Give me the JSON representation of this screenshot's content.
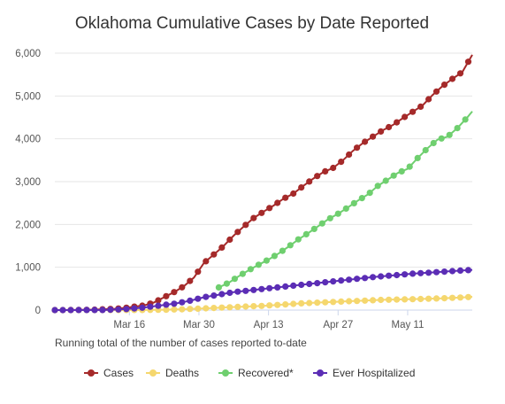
{
  "chart_data": {
    "type": "line",
    "title": "Oklahoma Cumulative Cases by Date Reported",
    "note": "Running total of the number of cases reported to-date",
    "x_ticks": [
      {
        "label": "Mar 16",
        "day": 15
      },
      {
        "label": "Mar 30",
        "day": 29
      },
      {
        "label": "Apr 13",
        "day": 43
      },
      {
        "label": "Apr 27",
        "day": 57
      },
      {
        "label": "May 11",
        "day": 71
      }
    ],
    "y_ticks": [
      "0",
      "1,000",
      "2,000",
      "3,000",
      "4,000",
      "5,000",
      "6,000"
    ],
    "ylim": [
      0,
      6000
    ],
    "xlim": [
      0,
      84
    ],
    "grid": true,
    "legend_position": "bottom",
    "series": [
      {
        "name": "Cases",
        "color": "#a52a2a",
        "x": [
          0,
          4,
          8,
          12,
          14,
          16,
          18,
          20,
          22,
          24,
          26,
          28,
          30,
          32,
          34,
          36,
          38,
          40,
          42,
          44,
          46,
          48,
          50,
          52,
          54,
          56,
          58,
          60,
          62,
          64,
          66,
          68,
          70,
          72,
          74,
          76,
          78,
          80,
          82,
          84
        ],
        "y": [
          0,
          2,
          10,
          30,
          50,
          80,
          110,
          180,
          300,
          420,
          560,
          760,
          1100,
          1300,
          1500,
          1740,
          1950,
          2150,
          2300,
          2440,
          2600,
          2720,
          2900,
          3070,
          3220,
          3320,
          3500,
          3720,
          3900,
          4050,
          4200,
          4320,
          4480,
          4630,
          4780,
          5020,
          5230,
          5400,
          5560,
          5960
        ]
      },
      {
        "name": "Deaths",
        "color": "#f5d76e",
        "x": [
          0,
          10,
          14,
          18,
          22,
          26,
          30,
          34,
          38,
          42,
          46,
          50,
          54,
          58,
          62,
          66,
          70,
          74,
          78,
          82,
          84
        ],
        "y": [
          0,
          0,
          1,
          3,
          8,
          20,
          40,
          60,
          80,
          100,
          130,
          160,
          180,
          200,
          220,
          240,
          250,
          260,
          275,
          295,
          310
        ]
      },
      {
        "name": "Recovered*",
        "color": "#6fcf6f",
        "x": [
          33,
          35,
          37,
          39,
          41,
          43,
          45,
          47,
          49,
          51,
          53,
          55,
          57,
          59,
          61,
          63,
          65,
          67,
          69,
          71,
          73,
          75,
          77,
          79,
          81,
          83,
          84
        ],
        "y": [
          530,
          640,
          790,
          930,
          1060,
          1180,
          1320,
          1480,
          1650,
          1800,
          1960,
          2120,
          2250,
          2400,
          2560,
          2700,
          2900,
          3050,
          3200,
          3300,
          3550,
          3780,
          3980,
          4050,
          4250,
          4500,
          4640
        ]
      },
      {
        "name": "Ever Hospitalized",
        "color": "#5b2db5",
        "x": [
          0,
          10,
          14,
          18,
          20,
          22,
          24,
          26,
          28,
          30,
          32,
          34,
          36,
          40,
          44,
          48,
          52,
          56,
          60,
          64,
          68,
          72,
          76,
          80,
          84
        ],
        "y": [
          0,
          3,
          20,
          60,
          90,
          120,
          150,
          190,
          240,
          300,
          340,
          380,
          420,
          470,
          520,
          570,
          620,
          670,
          720,
          770,
          810,
          850,
          880,
          910,
          940
        ]
      }
    ]
  }
}
